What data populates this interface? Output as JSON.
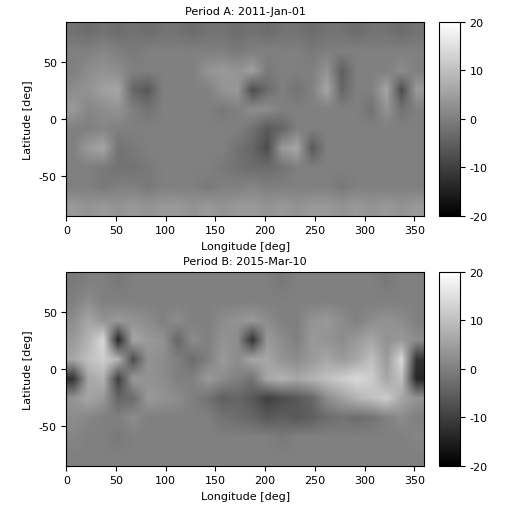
{
  "chart_data": [
    {
      "type": "heatmap",
      "title": "Period A: 2011-Jan-01",
      "x_label": "Longitude [deg]",
      "y_label": "Latitude [deg]",
      "xlim": [
        0,
        360
      ],
      "ylim": [
        -85,
        85
      ],
      "xticks": [
        0,
        50,
        100,
        150,
        200,
        250,
        300,
        350
      ],
      "yticks": [
        -50,
        0,
        50
      ],
      "x_edges": [
        0,
        15,
        30,
        45,
        60,
        75,
        90,
        105,
        120,
        135,
        150,
        165,
        180,
        195,
        210,
        225,
        240,
        255,
        270,
        285,
        300,
        315,
        330,
        345,
        360
      ],
      "y_edges": [
        -85,
        -68,
        -51,
        -34,
        -17,
        0,
        17,
        34,
        51,
        68,
        85
      ],
      "cells": [
        [
          4,
          3,
          4,
          3,
          4,
          3,
          4,
          4,
          3,
          4,
          3,
          4,
          4,
          3,
          4,
          3,
          4,
          4,
          3,
          4,
          3,
          4,
          3,
          4
        ],
        [
          0,
          0,
          -1,
          0,
          0,
          -1,
          0,
          0,
          0,
          -1,
          0,
          0,
          1,
          0,
          0,
          0,
          0,
          0,
          -1,
          0,
          0,
          0,
          0,
          0
        ],
        [
          0,
          0,
          -1,
          -2,
          -2,
          -1,
          0,
          0,
          0,
          0,
          -1,
          -2,
          -3,
          -3,
          -2,
          0,
          0,
          0,
          0,
          0,
          0,
          0,
          0,
          0
        ],
        [
          0,
          4,
          6,
          -2,
          -1,
          0,
          0,
          0,
          0,
          0,
          0,
          -2,
          -4,
          -8,
          4,
          6,
          -6,
          0,
          0,
          0,
          0,
          0,
          0,
          0
        ],
        [
          0,
          0,
          1,
          0,
          0,
          0,
          0,
          0,
          0,
          0,
          0,
          0,
          -2,
          -6,
          -4,
          0,
          0,
          0,
          0,
          0,
          0,
          0,
          0,
          0
        ],
        [
          4,
          1,
          2,
          3,
          0,
          -2,
          0,
          0,
          0,
          0,
          -1,
          0,
          2,
          2,
          0,
          0,
          0,
          0,
          0,
          0,
          -2,
          3,
          -2,
          0
        ],
        [
          2,
          3,
          5,
          6,
          -4,
          -6,
          0,
          0,
          0,
          0,
          3,
          4,
          -8,
          -3,
          0,
          -2,
          0,
          6,
          -4,
          0,
          0,
          6,
          -8,
          4
        ],
        [
          0,
          2,
          3,
          2,
          0,
          0,
          0,
          0,
          0,
          3,
          4,
          3,
          5,
          -1,
          0,
          0,
          0,
          3,
          -5,
          0,
          0,
          0,
          2,
          0
        ],
        [
          0,
          0,
          1,
          0,
          -1,
          0,
          0,
          0,
          0,
          0,
          0,
          -1,
          0,
          0,
          0,
          0,
          -1,
          0,
          0,
          0,
          0,
          0,
          0,
          0
        ],
        [
          -2,
          -3,
          -2,
          -3,
          -2,
          -3,
          -2,
          -2,
          -3,
          -2,
          -2,
          -3,
          -2,
          -3,
          -2,
          -2,
          -3,
          -2,
          -2,
          -3,
          -2,
          -2,
          -3,
          -2
        ]
      ],
      "colorbar_range": [
        -20,
        20
      ],
      "colorbar_ticks": [
        -20,
        -10,
        0,
        10,
        20
      ]
    },
    {
      "type": "heatmap",
      "title": "Period B: 2015-Mar-10",
      "x_label": "Longitude [deg]",
      "y_label": "Latitude [deg]",
      "xlim": [
        0,
        360
      ],
      "ylim": [
        -85,
        85
      ],
      "xticks": [
        0,
        50,
        100,
        150,
        200,
        250,
        300,
        350
      ],
      "yticks": [
        -50,
        0,
        50
      ],
      "x_edges": [
        0,
        15,
        30,
        45,
        60,
        75,
        90,
        105,
        120,
        135,
        150,
        165,
        180,
        195,
        210,
        225,
        240,
        255,
        270,
        285,
        300,
        315,
        330,
        345,
        360
      ],
      "y_edges": [
        -85,
        -68,
        -51,
        -34,
        -17,
        0,
        17,
        34,
        51,
        68,
        85
      ],
      "cells": [
        [
          0,
          0,
          0,
          0,
          0,
          0,
          0,
          0,
          0,
          0,
          0,
          0,
          0,
          0,
          0,
          0,
          0,
          0,
          0,
          0,
          0,
          0,
          0,
          0
        ],
        [
          1,
          0,
          0,
          -1,
          0,
          0,
          0,
          0,
          0,
          0,
          0,
          0,
          0,
          0,
          -1,
          0,
          0,
          0,
          0,
          0,
          0,
          0,
          0,
          1
        ],
        [
          2,
          1,
          0,
          0,
          2,
          0,
          0,
          0,
          0,
          0,
          -2,
          -3,
          -4,
          -6,
          -5,
          -6,
          -5,
          -3,
          -2,
          -3,
          -2,
          0,
          2,
          0
        ],
        [
          3,
          6,
          4,
          -4,
          -3,
          4,
          3,
          2,
          0,
          -2,
          -5,
          -4,
          -6,
          -10,
          -8,
          -6,
          -4,
          2,
          5,
          8,
          10,
          12,
          6,
          3
        ],
        [
          -12,
          6,
          8,
          -10,
          4,
          3,
          2,
          0,
          0,
          4,
          2,
          0,
          -2,
          6,
          8,
          6,
          8,
          10,
          12,
          14,
          12,
          6,
          10,
          -14
        ],
        [
          6,
          10,
          12,
          8,
          -8,
          3,
          2,
          0,
          -3,
          0,
          4,
          2,
          6,
          6,
          3,
          2,
          4,
          6,
          4,
          6,
          10,
          4,
          14,
          -12
        ],
        [
          4,
          8,
          14,
          -14,
          6,
          4,
          3,
          -4,
          2,
          0,
          3,
          2,
          -12,
          4,
          2,
          0,
          4,
          3,
          2,
          4,
          6,
          3,
          4,
          2
        ],
        [
          2,
          6,
          3,
          4,
          3,
          2,
          0,
          2,
          0,
          0,
          2,
          3,
          4,
          2,
          0,
          0,
          3,
          4,
          2,
          0,
          2,
          3,
          2,
          0
        ],
        [
          0,
          2,
          0,
          0,
          0,
          0,
          0,
          0,
          0,
          0,
          0,
          0,
          0,
          0,
          0,
          0,
          0,
          0,
          0,
          0,
          0,
          0,
          0,
          0
        ],
        [
          -1,
          0,
          0,
          -1,
          0,
          0,
          0,
          0,
          0,
          0,
          0,
          0,
          0,
          0,
          -1,
          0,
          0,
          0,
          0,
          0,
          0,
          -1,
          0,
          0
        ]
      ],
      "colorbar_range": [
        -20,
        20
      ],
      "colorbar_ticks": [
        -20,
        -10,
        0,
        10,
        20
      ]
    }
  ]
}
